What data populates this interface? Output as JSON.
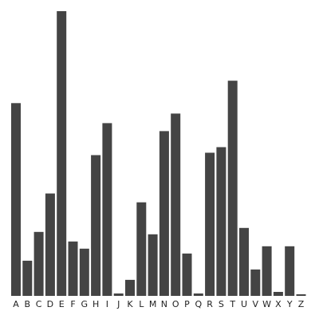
{
  "chart_data": {
    "type": "bar",
    "categories": [
      "A",
      "B",
      "C",
      "D",
      "E",
      "F",
      "G",
      "H",
      "I",
      "J",
      "K",
      "L",
      "M",
      "N",
      "O",
      "P",
      "Q",
      "R",
      "S",
      "T",
      "U",
      "V",
      "W",
      "X",
      "Y",
      "Z"
    ],
    "values": [
      241,
      44,
      80,
      128,
      356,
      68,
      59,
      176,
      216,
      3,
      20,
      117,
      77,
      206,
      228,
      53,
      3,
      179,
      186,
      269,
      85,
      33,
      62,
      5,
      62,
      2
    ],
    "title": "",
    "xlabel": "",
    "ylabel": "",
    "ylim": [
      0,
      356
    ],
    "bar_color": "#444444",
    "grid": false,
    "axes_visible": false
  }
}
